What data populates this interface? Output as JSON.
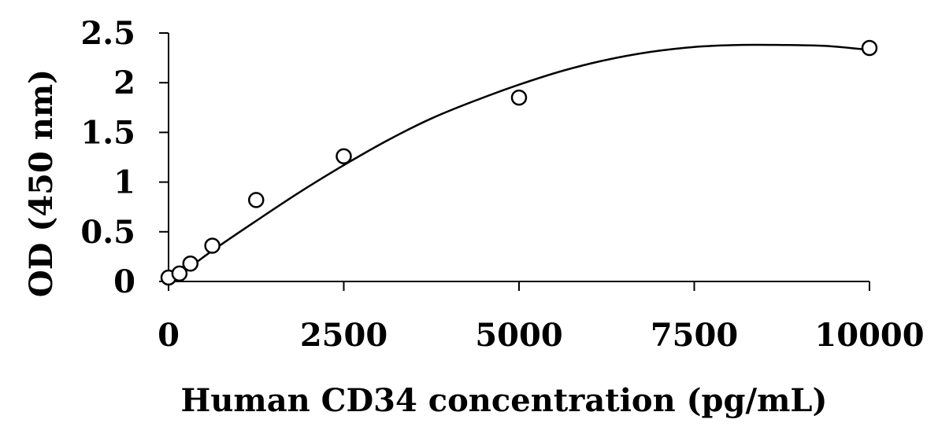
{
  "chart_data": {
    "type": "scatter",
    "title": "",
    "xlabel": "Human CD34 concentration (pg/mL)",
    "ylabel": "OD (450 nm)",
    "xlim": [
      0,
      10000
    ],
    "ylim": [
      0,
      2.5
    ],
    "x_ticks": [
      0,
      2500,
      5000,
      7500,
      10000
    ],
    "x_tick_labels": [
      "0",
      "2500",
      "5000",
      "7500",
      "10000"
    ],
    "y_ticks": [
      0,
      0.5,
      1,
      1.5,
      2,
      2.5
    ],
    "y_tick_labels": [
      "0",
      "0.5",
      "1",
      "1.5",
      "2",
      "2.5"
    ],
    "grid": false,
    "legend": "none",
    "series": [
      {
        "marker": "open-circle",
        "x": [
          0,
          156,
          312,
          625,
          1250,
          2500,
          5000,
          10000
        ],
        "y": [
          0.04,
          0.08,
          0.18,
          0.36,
          0.82,
          1.26,
          1.85,
          2.35
        ]
      }
    ],
    "fit_line": {
      "x": [
        0,
        312,
        625,
        1250,
        1875,
        2500,
        3125,
        3750,
        4375,
        5000,
        5625,
        6250,
        6875,
        7500,
        8125,
        8750,
        9375,
        10000
      ],
      "y": [
        0.02,
        0.15,
        0.31,
        0.61,
        0.9,
        1.17,
        1.42,
        1.64,
        1.82,
        1.98,
        2.12,
        2.23,
        2.31,
        2.36,
        2.38,
        2.38,
        2.37,
        2.33
      ]
    },
    "colors": {
      "axis": "#000000",
      "marker_stroke": "#000000",
      "marker_fill": "#ffffff",
      "line": "#000000"
    }
  }
}
